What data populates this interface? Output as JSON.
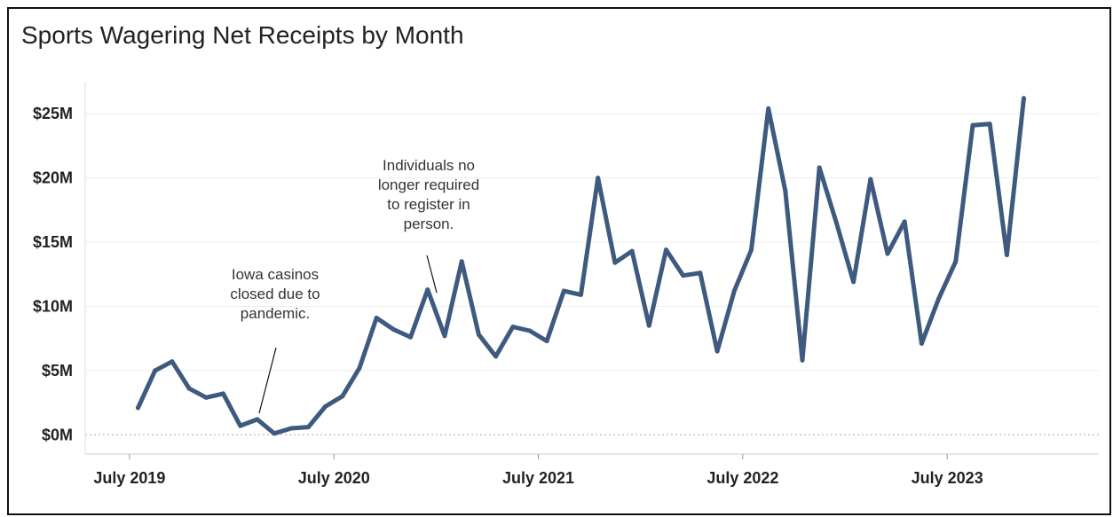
{
  "chart_data": {
    "type": "line",
    "title": "Sports Wagering Net Receipts by Month",
    "xlabel": "",
    "ylabel": "",
    "y_unit_note": "millions of dollars",
    "y_ticks": [
      "$0M",
      "$5M",
      "$10M",
      "$15M",
      "$20M",
      "$25M"
    ],
    "y_tick_values": [
      0,
      5,
      10,
      15,
      20,
      25
    ],
    "ylim": [
      -1.5,
      27.5
    ],
    "x_ticks": [
      {
        "label": "July 2019",
        "value": 0
      },
      {
        "label": "July 2020",
        "value": 12
      },
      {
        "label": "July 2021",
        "value": 24
      },
      {
        "label": "July 2022",
        "value": 36
      },
      {
        "label": "July 2023",
        "value": 48
      }
    ],
    "xlim": [
      -2.6,
      56.9
    ],
    "grid": true,
    "line_color": "#3e5a7e",
    "series": [
      {
        "x": [
          0.5,
          1.5,
          2.5,
          3.5,
          4.5,
          5.5,
          6.5,
          7.5,
          8.5,
          9.5,
          10.5,
          11.5,
          12.5,
          13.5,
          14.5,
          15.5,
          16.5,
          17.5,
          18.5,
          19.5,
          20.5,
          21.5,
          22.5,
          23.5,
          24.5,
          25.5,
          26.5,
          27.5,
          28.5,
          29.5,
          30.5,
          31.5,
          32.5,
          33.5,
          34.5,
          35.5,
          36.5,
          37.5,
          38.5,
          39.5,
          40.5,
          41.5,
          42.5,
          43.5,
          44.5,
          45.5,
          46.5,
          47.5,
          48.5,
          49.5,
          50.5,
          51.5,
          52.5,
          53.5
        ],
        "values": [
          2.1,
          5.0,
          5.7,
          3.6,
          2.9,
          3.2,
          0.7,
          1.2,
          0.1,
          0.5,
          0.6,
          2.2,
          3.0,
          5.2,
          9.1,
          8.2,
          7.6,
          11.3,
          7.7,
          13.5,
          7.8,
          6.1,
          8.4,
          8.1,
          7.3,
          11.2,
          10.9,
          20.0,
          13.4,
          14.3,
          8.5,
          14.4,
          12.4,
          12.6,
          6.5,
          11.2,
          14.4,
          25.4,
          19.0,
          5.8,
          20.8,
          16.5,
          11.9,
          19.9,
          14.1,
          16.6,
          7.1,
          10.6,
          13.5,
          24.1,
          24.2,
          14.0,
          26.2,
          null
        ]
      }
    ],
    "annotations": [
      {
        "lines": [
          "Iowa casinos",
          "closed due to",
          "pandemic."
        ],
        "points_to_x": 7.5
      },
      {
        "lines": [
          "Individuals no",
          "longer required",
          "to register in",
          "person."
        ],
        "points_to_x": 16.5
      }
    ]
  }
}
